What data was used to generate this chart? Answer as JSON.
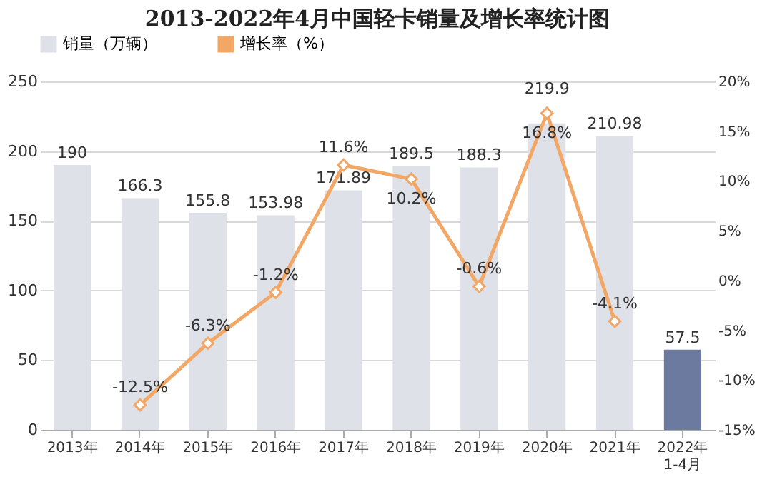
{
  "chart_data": {
    "type": "bar",
    "title": "2013-2022年4月中国轻卡销量及增长率统计图",
    "categories": [
      "2013年",
      "2014年",
      "2015年",
      "2016年",
      "2017年",
      "2018年",
      "2019年",
      "2020年",
      "2021年",
      "2022年\n1-4月"
    ],
    "series": [
      {
        "name": "销量（万辆）",
        "color": "#dfe1e8",
        "colors": [
          "#dfe1e8",
          "#dfe1e8",
          "#dfe1e8",
          "#dfe1e8",
          "#dfe1e8",
          "#dfe1e8",
          "#dfe1e8",
          "#dfe1e8",
          "#dfe1e8",
          "#6b7a9e"
        ],
        "values": [
          190,
          166.3,
          155.8,
          153.98,
          171.89,
          189.5,
          188.3,
          219.9,
          210.98,
          57.5
        ]
      },
      {
        "name": "增长率（%）",
        "type": "line",
        "axis": "y2",
        "color": "#f2a766",
        "marker": "diamond",
        "line_style": "solid",
        "values": [
          null,
          -12.5,
          -6.3,
          -1.2,
          11.6,
          10.2,
          -0.6,
          16.8,
          -4.1,
          null
        ],
        "value_labels": [
          null,
          "-12.5%",
          "-6.3%",
          "-1.2%",
          "11.6%",
          "10.2%",
          "-0.6%",
          "16.8%",
          "-4.1%",
          null
        ]
      }
    ],
    "data_labels": true,
    "ylim": [
      0,
      250
    ],
    "yticks": [
      0,
      50,
      100,
      150,
      200,
      250
    ],
    "y2lim": [
      -15,
      20
    ],
    "y2ticks": [
      {
        "value": -15,
        "label": "-15%"
      },
      {
        "value": -10,
        "label": "-10%"
      },
      {
        "value": -5,
        "label": "-5%"
      },
      {
        "value": 0,
        "label": "0%"
      },
      {
        "value": 5,
        "label": "5%"
      },
      {
        "value": 10,
        "label": "10%"
      },
      {
        "value": 15,
        "label": "15%"
      },
      {
        "value": 20,
        "label": "20%"
      }
    ],
    "grid": "y",
    "legend": "top"
  }
}
